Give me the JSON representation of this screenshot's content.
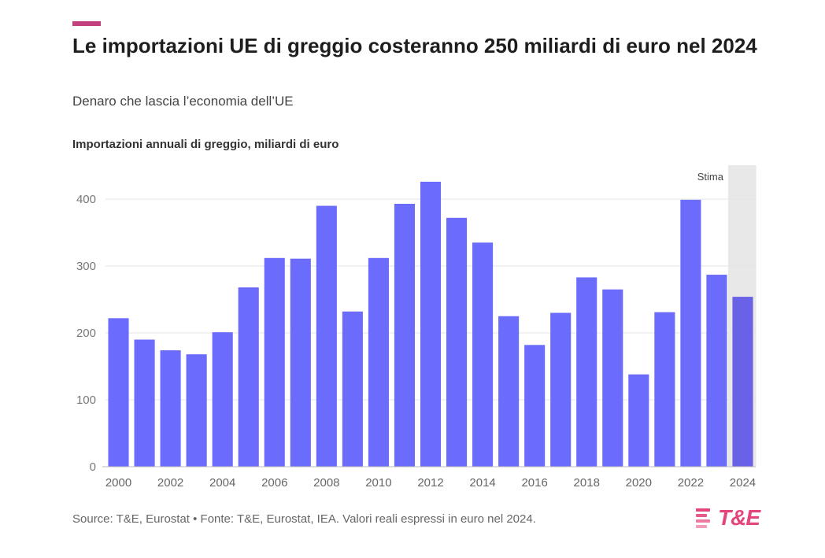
{
  "header": {
    "title": "Le importazioni UE di greggio costeranno 250 miliardi di euro nel 2024",
    "subtitle": "Denaro che lascia l’economia dell’UE"
  },
  "footer": {
    "source": "Source: T&E, Eurostat • Fonte: T&E, Eurostat, IEA. Valori reali espressi in euro nel 2024.",
    "logo_text": "T&E"
  },
  "colors": {
    "accent": "#c2407e",
    "bar": "#6b6bfc",
    "bar_estimate": "#6a62e6",
    "estimate_band": "#e8e8e8",
    "logo": "#e4457a"
  },
  "chart_data": {
    "type": "bar",
    "title": "Le importazioni UE di greggio costeranno 250 miliardi di euro nel 2024",
    "subtitle": "Denaro che lascia l’economia dell’UE",
    "ylabel": "Importazioni annuali di greggio, miliardi di euro",
    "xlabel": "",
    "categories": [
      "2000",
      "2001",
      "2002",
      "2003",
      "2004",
      "2005",
      "2006",
      "2007",
      "2008",
      "2009",
      "2010",
      "2011",
      "2012",
      "2013",
      "2014",
      "2015",
      "2016",
      "2017",
      "2018",
      "2019",
      "2020",
      "2021",
      "2022",
      "2023",
      "2024"
    ],
    "values": [
      222,
      190,
      174,
      168,
      201,
      268,
      312,
      311,
      390,
      232,
      312,
      393,
      426,
      372,
      335,
      225,
      182,
      230,
      283,
      265,
      138,
      231,
      399,
      287,
      254
    ],
    "x_tick_labels": [
      "2000",
      "2002",
      "2004",
      "2006",
      "2008",
      "2010",
      "2012",
      "2014",
      "2016",
      "2018",
      "2020",
      "2022",
      "2024"
    ],
    "y_ticks": [
      0,
      100,
      200,
      300,
      400
    ],
    "ylim": [
      0,
      450
    ],
    "grid": true,
    "estimate": {
      "category": "2024",
      "label": "Stima"
    }
  }
}
